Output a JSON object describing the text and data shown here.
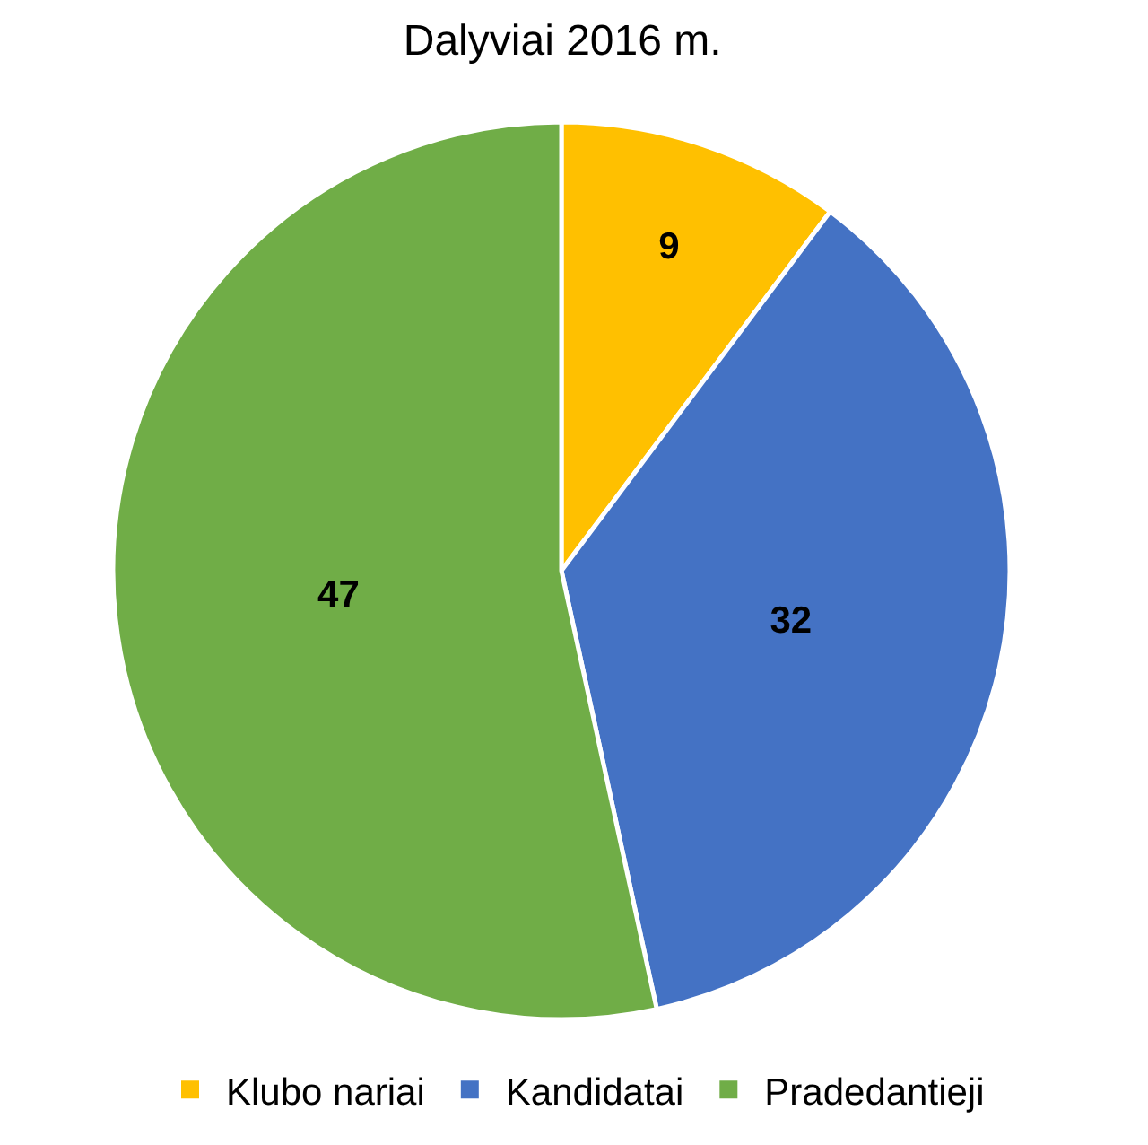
{
  "chart_data": {
    "type": "pie",
    "title": "Dalyviai 2016 m.",
    "categories": [
      "Klubo nariai",
      "Kandidatai",
      "Pradedantieji"
    ],
    "values": [
      9,
      32,
      47
    ],
    "colors": [
      "#ffc000",
      "#4472c4",
      "#70ad47"
    ],
    "data_labels": true,
    "legend": "bottom"
  }
}
